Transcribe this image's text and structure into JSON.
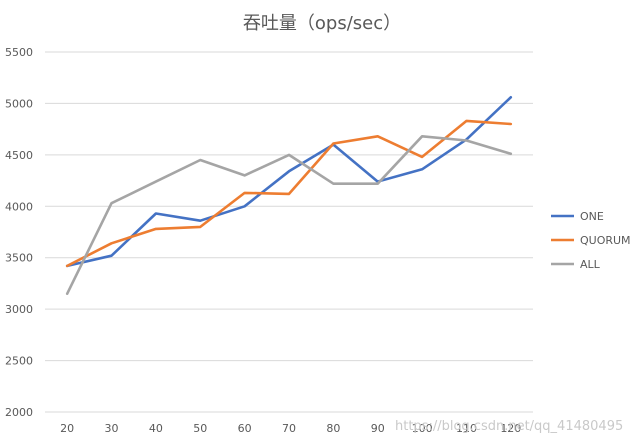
{
  "chart_data": {
    "type": "line",
    "title": "吞吐量（ops/sec）",
    "xlabel": "",
    "ylabel": "",
    "categories": [
      "20",
      "30",
      "40",
      "50",
      "60",
      "70",
      "80",
      "90",
      "100",
      "110",
      "120"
    ],
    "ylim": [
      2000,
      5500
    ],
    "yticks": [
      2000,
      2500,
      3000,
      3500,
      4000,
      4500,
      5000,
      5500
    ],
    "grid": true,
    "legend_position": "right",
    "series": [
      {
        "name": "ONE",
        "color": "#4472c4",
        "values": [
          3420,
          3520,
          3930,
          3860,
          4000,
          4340,
          4600,
          4240,
          4360,
          4650,
          5060
        ]
      },
      {
        "name": "QUORUM",
        "color": "#ed7d31",
        "values": [
          3420,
          3640,
          3780,
          3800,
          4130,
          4120,
          4610,
          4680,
          4480,
          4830,
          4800
        ]
      },
      {
        "name": "ALL",
        "color": "#a5a5a5",
        "values": [
          3150,
          4030,
          4240,
          4450,
          4300,
          4500,
          4220,
          4220,
          4680,
          4640,
          4510
        ]
      }
    ]
  },
  "watermark": "https://blog.csdn.net/qq_41480495"
}
